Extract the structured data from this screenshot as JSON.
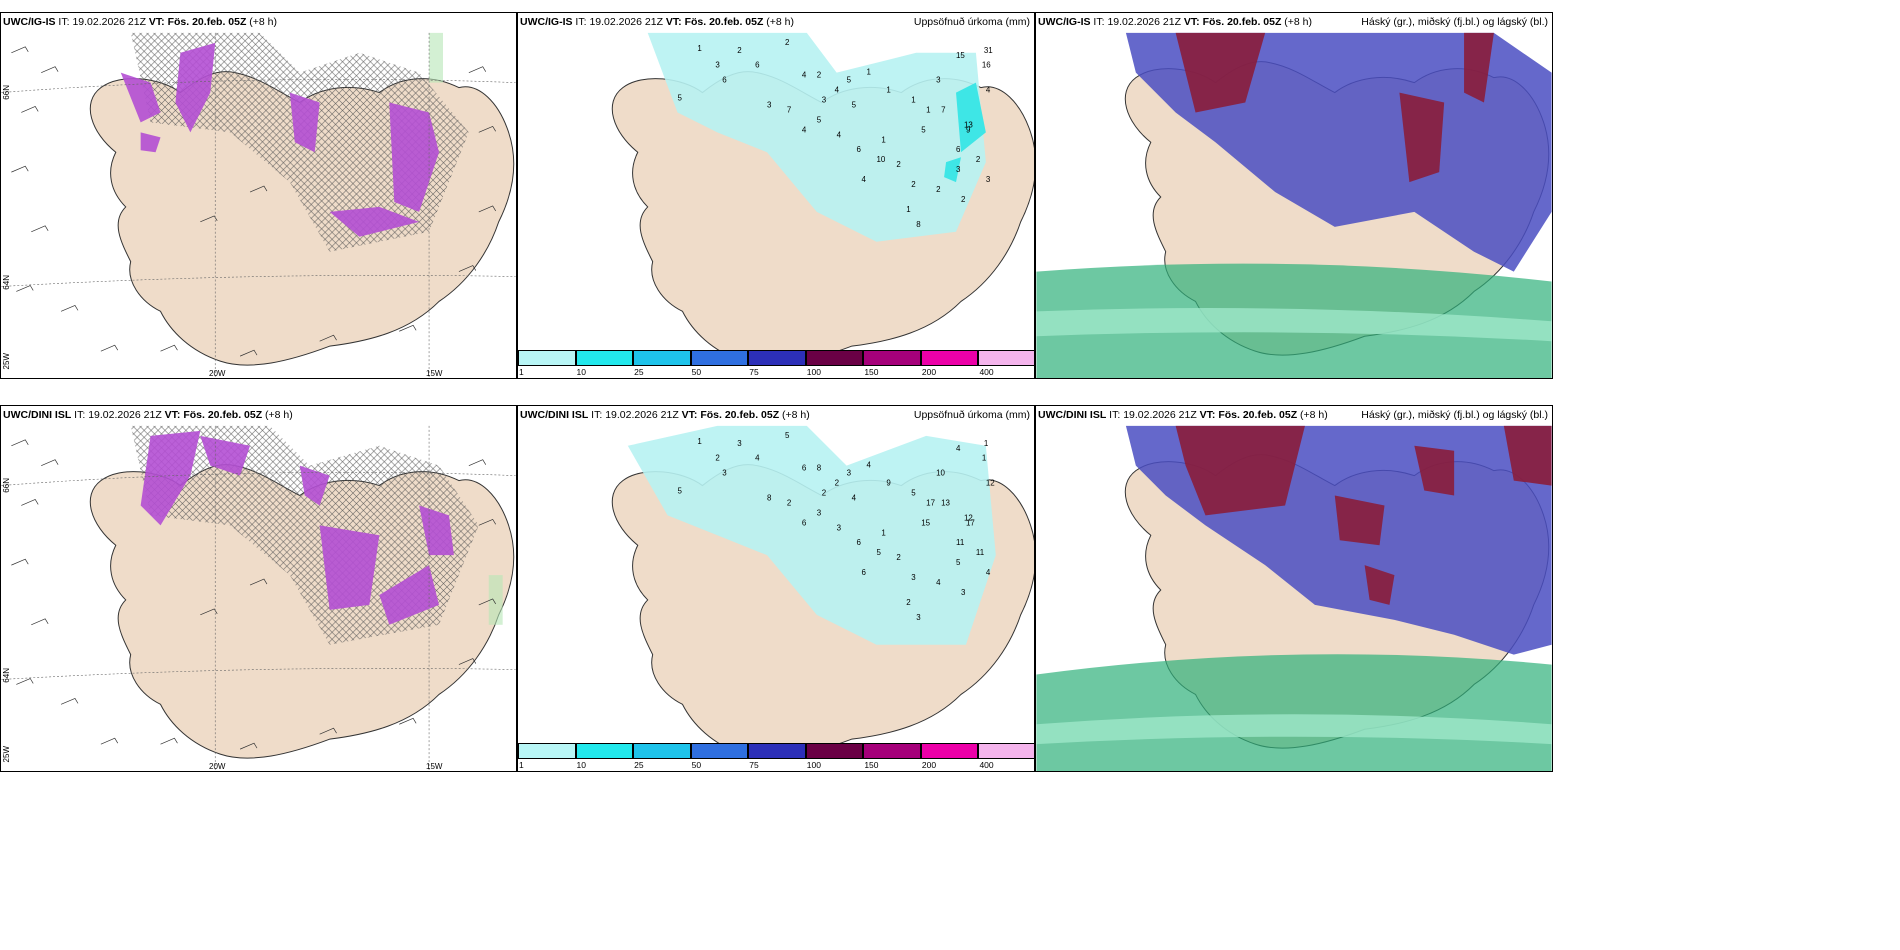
{
  "colors": {
    "land": "#efdcc9",
    "precip_light": "#b7f2f2",
    "precip_mid": "#3ee6e6",
    "snow_pink": "#b44fd4",
    "cloud_high": "#8a1d3b",
    "cloud_mid": "#4a4ec2",
    "cloud_low": "#2fb07a"
  },
  "legend": {
    "labels": [
      "1",
      "10",
      "25",
      "50",
      "75",
      "100",
      "150",
      "200",
      "400"
    ],
    "colors": [
      "#b8f6f6",
      "#22e8ec",
      "#1ec3ea",
      "#2f6fe0",
      "#2c2fb8",
      "#6a0045",
      "#a5007a",
      "#ec00a8",
      "#f4b4ec"
    ]
  },
  "axis_labels": {
    "w20": "20W",
    "w15": "15W",
    "n66": "66N",
    "n64": "64N",
    "w25": "25W"
  },
  "rows": [
    {
      "id": "ig",
      "left": {
        "model": "UWC/IG-IS",
        "it_label": "IT:",
        "it_value": "19.02.2026 21Z",
        "vt_label": "VT:",
        "vt_value": "Fös. 20.feb. 05Z",
        "lead": "(+8 h)"
      },
      "mid": {
        "model": "UWC/IG-IS",
        "it_label": "IT:",
        "it_value": "19.02.2026 21Z",
        "vt_label": "VT:",
        "vt_value": "Fös. 20.feb. 05Z",
        "lead": "(+8 h)",
        "title": "Uppsöfnuð úrkoma (mm)",
        "values": [
          "1",
          "2",
          "2",
          "3",
          "6",
          "6",
          "5",
          "4",
          "2",
          "4",
          "5",
          "1",
          "1",
          "1",
          "1",
          "3",
          "15",
          "31",
          "16",
          "4",
          "13",
          "7",
          "5",
          "9",
          "6",
          "2",
          "3",
          "3",
          "2",
          "2",
          "1",
          "8",
          "10",
          "6",
          "4",
          "5",
          "4",
          "7",
          "3",
          "4",
          "2",
          "2",
          "1",
          "3",
          "5"
        ]
      },
      "right": {
        "model": "UWC/IG-IS",
        "it_label": "IT:",
        "it_value": "19.02.2026 21Z",
        "vt_label": "VT:",
        "vt_value": "Fös. 20.feb. 05Z",
        "lead": "(+8 h)",
        "title": "Háský (gr.), miðský (fj.bl.) og lágský (bl.)"
      }
    },
    {
      "id": "dini",
      "left": {
        "model": "UWC/DINI ISL",
        "it_label": "IT:",
        "it_value": "19.02.2026 21Z",
        "vt_label": "VT:",
        "vt_value": "Fös. 20.feb. 05Z",
        "lead": "(+8 h)"
      },
      "mid": {
        "model": "UWC/DINI ISL",
        "it_label": "IT:",
        "it_value": "19.02.2026 21Z",
        "vt_label": "VT:",
        "vt_value": "Fös. 20.feb. 05Z",
        "lead": "(+8 h)",
        "title": "Uppsöfnuð úrkoma (mm)",
        "values": [
          "1",
          "3",
          "5",
          "2",
          "4",
          "3",
          "5",
          "6",
          "8",
          "2",
          "3",
          "4",
          "9",
          "5",
          "17",
          "10",
          "4",
          "1",
          "1",
          "12",
          "12",
          "13",
          "15",
          "17",
          "11",
          "11",
          "4",
          "5",
          "4",
          "3",
          "2",
          "3",
          "5",
          "6",
          "3",
          "3",
          "6",
          "2",
          "8",
          "6",
          "2",
          "3",
          "1",
          "2",
          "4"
        ]
      },
      "right": {
        "model": "UWC/DINI ISL",
        "it_label": "IT:",
        "it_value": "19.02.2026 21Z",
        "vt_label": "VT:",
        "vt_value": "Fös. 20.feb. 05Z",
        "lead": "(+8 h)",
        "title": "Háský (gr.), miðský (fj.bl.) og lágský (bl.)"
      }
    }
  ]
}
